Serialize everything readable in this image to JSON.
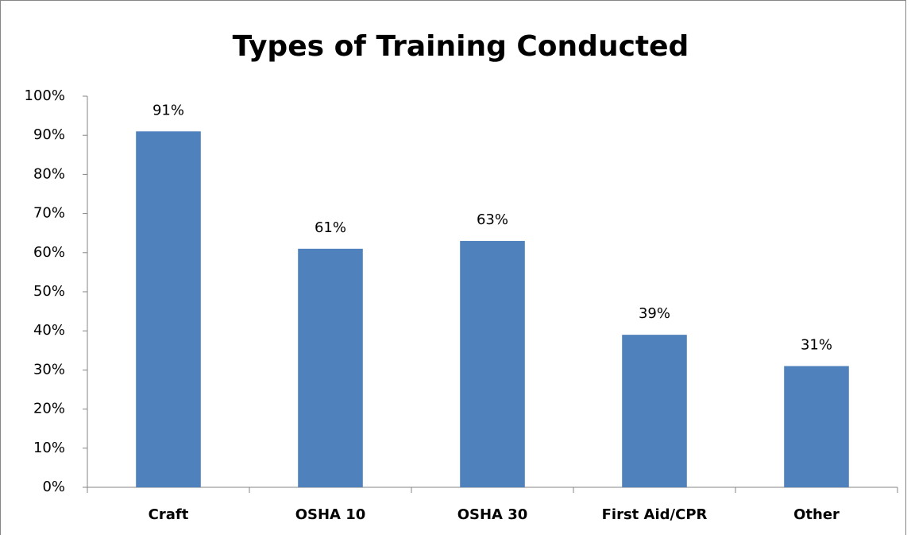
{
  "chart_data": {
    "type": "bar",
    "title": "Types of Training Conducted",
    "categories": [
      "Craft",
      "OSHA 10",
      "OSHA 30",
      "First Aid/CPR",
      "Other"
    ],
    "values": [
      91,
      61,
      63,
      39,
      31
    ],
    "value_labels": [
      "91%",
      "61%",
      "63%",
      "39%",
      "31%"
    ],
    "color": "#4f81bd",
    "ylim": [
      0,
      100
    ],
    "yticks": [
      {
        "value": 0,
        "label": "0%"
      },
      {
        "value": 10,
        "label": "10%"
      },
      {
        "value": 20,
        "label": "20%"
      },
      {
        "value": 30,
        "label": "30%"
      },
      {
        "value": 40,
        "label": "40%"
      },
      {
        "value": 50,
        "label": "50%"
      },
      {
        "value": 60,
        "label": "60%"
      },
      {
        "value": 70,
        "label": "70%"
      },
      {
        "value": 80,
        "label": "80%"
      },
      {
        "value": 90,
        "label": "90%"
      },
      {
        "value": 100,
        "label": "100%"
      }
    ],
    "grid": false
  }
}
